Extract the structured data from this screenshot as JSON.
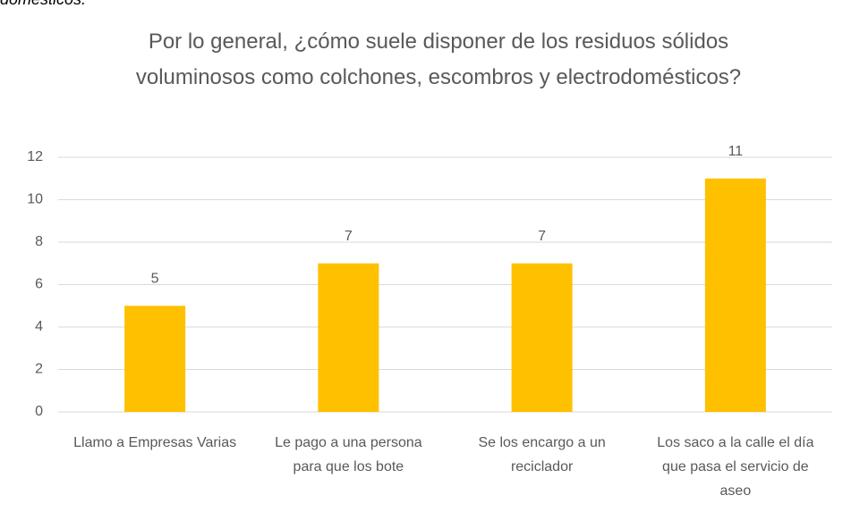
{
  "caption": "domésticos.",
  "chart_data": {
    "type": "bar",
    "title": "Por lo general, ¿cómo suele disponer de los residuos sólidos voluminosos como colchones, escombros y electrodomésticos?",
    "categories": [
      "Llamo a Empresas Varias",
      "Le pago a una persona para que los bote",
      "Se los encargo a un reciclador",
      "Los saco a la calle el día que pasa el servicio de aseo"
    ],
    "values": [
      5,
      7,
      7,
      11
    ],
    "color": "#ffc000",
    "ylim": [
      0,
      12
    ],
    "yticks": [
      0,
      2,
      4,
      6,
      8,
      10,
      12
    ],
    "grid": true
  }
}
